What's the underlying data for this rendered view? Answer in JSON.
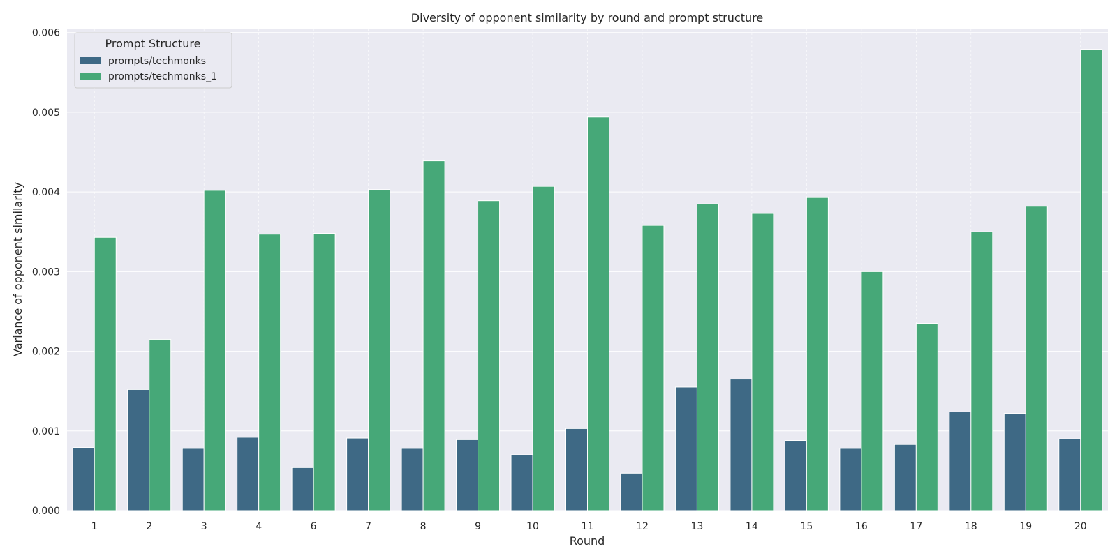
{
  "chart_data": {
    "type": "bar",
    "title": "Diversity of opponent similarity by round and prompt structure",
    "xlabel": "Round",
    "ylabel": "Variance of opponent similarity",
    "categories": [
      "1",
      "2",
      "3",
      "4",
      "6",
      "7",
      "8",
      "9",
      "10",
      "11",
      "12",
      "13",
      "14",
      "15",
      "16",
      "17",
      "18",
      "19",
      "20"
    ],
    "yticks": [
      "0.000",
      "0.001",
      "0.002",
      "0.003",
      "0.004",
      "0.005",
      "0.006"
    ],
    "ylim": [
      0,
      0.00605
    ],
    "grid": true,
    "legend": {
      "title": "Prompt Structure",
      "position": "top-left"
    },
    "series": [
      {
        "name": "prompts/techmonks",
        "color": "#3e6985",
        "values": [
          0.00079,
          0.00152,
          0.00078,
          0.00092,
          0.00054,
          0.00091,
          0.00078,
          0.00089,
          0.0007,
          0.00103,
          0.00047,
          0.00155,
          0.00165,
          0.00088,
          0.00078,
          0.00083,
          0.00124,
          0.00122,
          0.0009
        ]
      },
      {
        "name": "prompts/techmonks_1",
        "color": "#46a878",
        "values": [
          0.00343,
          0.00215,
          0.00402,
          0.00347,
          0.00348,
          0.00403,
          0.00439,
          0.00389,
          0.00407,
          0.00494,
          0.00358,
          0.00385,
          0.00373,
          0.00393,
          0.003,
          0.00235,
          0.0035,
          0.00382,
          0.00579
        ]
      }
    ]
  },
  "colors": {
    "plot_background": "#eaeaf2",
    "grid": "#ffffff"
  }
}
